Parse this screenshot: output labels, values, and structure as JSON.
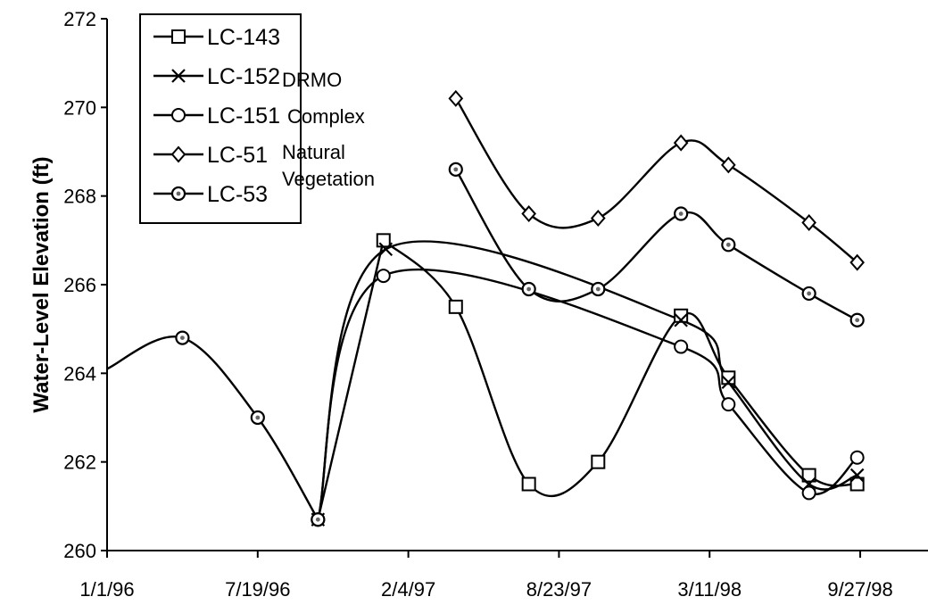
{
  "chart_data": {
    "type": "line",
    "title": "",
    "xlabel": "",
    "ylabel": "Water-Level Elevation (ft)",
    "ylim": [
      260,
      272
    ],
    "yticks": [
      260,
      262,
      264,
      266,
      268,
      270,
      272
    ],
    "xlim": [
      "1/1/96",
      "12/26/98"
    ],
    "xticks": [
      "1/1/96",
      "7/19/96",
      "2/4/97",
      "8/23/97",
      "3/11/98",
      "9/27/98"
    ],
    "grid": false,
    "legend_position": "top-left",
    "annotation": [
      "DRMO",
      "Complex",
      "Natural",
      "Vegetation"
    ],
    "series": [
      {
        "name": "LC-143",
        "marker": "square",
        "points": [
          {
            "x": "1/2/97",
            "y": 267.0
          },
          {
            "x": "4/8/97",
            "y": 265.5
          },
          {
            "x": "7/14/97",
            "y": 261.5
          },
          {
            "x": "10/14/97",
            "y": 262.0
          },
          {
            "x": "2/1/98",
            "y": 265.3
          },
          {
            "x": "4/5/98",
            "y": 263.9
          },
          {
            "x": "7/21/98",
            "y": 261.7
          },
          {
            "x": "9/23/98",
            "y": 261.5
          }
        ]
      },
      {
        "name": "LC-152",
        "marker": "x",
        "points": [
          {
            "x": "10/7/96",
            "y": 260.7
          },
          {
            "x": "1/5/97",
            "y": 266.8
          },
          {
            "x": "2/1/98",
            "y": 265.2
          },
          {
            "x": "4/5/98",
            "y": 263.8
          },
          {
            "x": "7/21/98",
            "y": 261.5
          },
          {
            "x": "9/23/98",
            "y": 261.7
          }
        ]
      },
      {
        "name": "LC-151",
        "marker": "circle",
        "points": [
          {
            "x": "10/7/96",
            "y": 260.7
          },
          {
            "x": "1/2/97",
            "y": 266.2
          },
          {
            "x": "2/1/98",
            "y": 264.6
          },
          {
            "x": "4/5/98",
            "y": 263.3
          },
          {
            "x": "7/21/98",
            "y": 261.3
          },
          {
            "x": "9/23/98",
            "y": 262.1
          }
        ]
      },
      {
        "name": "LC-51",
        "marker": "diamond",
        "points": [
          {
            "x": "4/8/97",
            "y": 270.2
          },
          {
            "x": "7/14/97",
            "y": 267.6
          },
          {
            "x": "10/14/97",
            "y": 267.5
          },
          {
            "x": "2/1/98",
            "y": 269.2
          },
          {
            "x": "4/5/98",
            "y": 268.7
          },
          {
            "x": "7/21/98",
            "y": 267.4
          },
          {
            "x": "9/23/98",
            "y": 266.5
          }
        ]
      },
      {
        "name": "LC-53",
        "marker": "circle-dot",
        "points": [
          {
            "x": "1/1/96",
            "y": 264.1
          },
          {
            "x": "4/10/96",
            "y": 264.8
          },
          {
            "x": "7/19/96",
            "y": 263.0
          },
          {
            "x": "10/7/96",
            "y": 260.7
          },
          {
            "x": "4/8/97",
            "y": 268.6
          },
          {
            "x": "7/14/97",
            "y": 265.9
          },
          {
            "x": "10/14/97",
            "y": 265.9
          },
          {
            "x": "2/1/98",
            "y": 267.6
          },
          {
            "x": "4/5/98",
            "y": 266.9
          },
          {
            "x": "7/21/98",
            "y": 265.8
          },
          {
            "x": "9/23/98",
            "y": 265.2
          }
        ]
      }
    ],
    "connect_note": "LC-53 early points connect into LC-152 rise at 1/5/97 in original drawing"
  }
}
